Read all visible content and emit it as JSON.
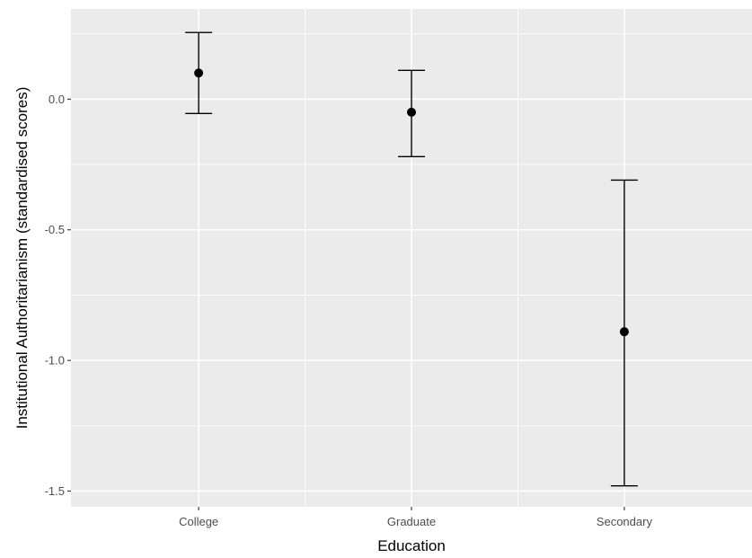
{
  "chart_data": {
    "type": "scatter",
    "subtype": "point-with-errorbars",
    "xlabel": "Education",
    "ylabel": "Institutional Authoritarianism (standardised scores)",
    "categories": [
      "College",
      "Graduate",
      "Secondary"
    ],
    "series": [
      {
        "values": [
          0.1,
          -0.05,
          -0.89
        ],
        "lower": [
          -0.055,
          -0.22,
          -1.48
        ],
        "upper": [
          0.255,
          0.11,
          -0.31
        ]
      }
    ],
    "y_ticks": [
      0.0,
      -0.5,
      -1.0,
      -1.5
    ],
    "y_tick_labels": [
      "0.0",
      "-0.5",
      "-1.0",
      "-1.5"
    ],
    "ylim": [
      -1.56,
      0.345
    ],
    "grid": true,
    "legend": "none",
    "colors": {
      "panel_background": "#ebebeb",
      "grid": "#ffffff",
      "marker": "#000000"
    }
  }
}
